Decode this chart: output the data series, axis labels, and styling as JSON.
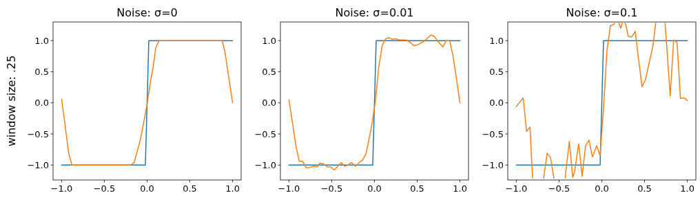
{
  "chart_data": [
    {
      "type": "line",
      "title": "Noise: σ=0",
      "ylabel": "window size: .25",
      "xlim": [
        -1.1,
        1.1
      ],
      "ylim": [
        -1.24,
        1.3
      ],
      "xticks": [
        {
          "value": -1,
          "label": "−1.0"
        },
        {
          "value": -0.5,
          "label": "−0.5"
        },
        {
          "value": 0,
          "label": "0.0"
        },
        {
          "value": 0.5,
          "label": "0.5"
        },
        {
          "value": 1,
          "label": "1.0"
        }
      ],
      "yticks": [
        {
          "value": -1,
          "label": "−1.0"
        },
        {
          "value": -0.5,
          "label": "−0.5"
        },
        {
          "value": 0,
          "label": "0.0"
        },
        {
          "value": 0.5,
          "label": "0.5"
        },
        {
          "value": 1,
          "label": "1.0"
        }
      ],
      "series": [
        {
          "color": "#1f77b4",
          "x": [
            -1,
            -0.02,
            0.02,
            1
          ],
          "values": [
            -1,
            -1,
            1,
            1
          ]
        },
        {
          "color": "#ff7f0e",
          "x": [
            -1,
            -0.96,
            -0.92,
            -0.88,
            -0.19,
            -0.15,
            -0.12,
            -0.08,
            -0.04,
            0,
            0.04,
            0.07,
            0.1,
            0.14,
            0.88,
            0.91,
            0.95,
            1
          ],
          "values": [
            0.06,
            -0.35,
            -0.79,
            -1,
            -1,
            -0.96,
            -0.8,
            -0.6,
            -0.32,
            -0.02,
            0.35,
            0.57,
            0.88,
            1,
            1,
            0.82,
            0.46,
            0
          ]
        }
      ]
    },
    {
      "type": "line",
      "title": "Noise: σ=0.01",
      "xlim": [
        -1.1,
        1.1
      ],
      "ylim": [
        -1.24,
        1.3
      ],
      "xticks": [
        {
          "value": -1,
          "label": "−1.0"
        },
        {
          "value": -0.5,
          "label": "−0.5"
        },
        {
          "value": 0,
          "label": "0.0"
        },
        {
          "value": 0.5,
          "label": "0.5"
        },
        {
          "value": 1,
          "label": "1.0"
        }
      ],
      "yticks": [
        {
          "value": -1,
          "label": "−1.0"
        },
        {
          "value": -0.5,
          "label": "−0.5"
        },
        {
          "value": 0,
          "label": "0.0"
        },
        {
          "value": 0.5,
          "label": "0.5"
        },
        {
          "value": 1,
          "label": "1.0"
        }
      ],
      "series": [
        {
          "color": "#1f77b4",
          "x": [
            -1,
            -0.02,
            0.02,
            1
          ],
          "values": [
            -1,
            -1,
            1,
            1
          ]
        },
        {
          "color": "#ff7f0e",
          "x": [
            -1,
            -0.92,
            -0.88,
            -0.84,
            -0.8,
            -0.76,
            -0.71,
            -0.67,
            -0.64,
            -0.6,
            -0.55,
            -0.51,
            -0.47,
            -0.43,
            -0.39,
            -0.35,
            -0.31,
            -0.27,
            -0.22,
            -0.18,
            -0.14,
            -0.1,
            -0.07,
            -0.03,
            0.01,
            0.05,
            0.09,
            0.13,
            0.17,
            0.21,
            0.25,
            0.29,
            0.33,
            0.37,
            0.42,
            0.46,
            0.5,
            0.54,
            0.58,
            0.62,
            0.66,
            0.7,
            0.74,
            0.8,
            0.84,
            0.88,
            0.92,
            0.96,
            1
          ],
          "values": [
            0.05,
            -0.68,
            -0.94,
            -0.94,
            -1.04,
            -1.04,
            -1.02,
            -1.03,
            -0.97,
            -0.98,
            -1.03,
            -1.03,
            -1.08,
            -1.02,
            -0.96,
            -1.02,
            -1,
            -0.96,
            -1.02,
            -0.96,
            -0.92,
            -0.82,
            -0.63,
            -0.35,
            0.02,
            0.57,
            0.92,
            1.03,
            1.05,
            1.02,
            1.03,
            1.01,
            1.01,
            1.01,
            0.97,
            0.92,
            0.93,
            0.96,
            0.99,
            1.04,
            1.09,
            1.07,
            0.99,
            0.9,
            1,
            1,
            0.75,
            0.38,
            0
          ]
        }
      ]
    },
    {
      "type": "line",
      "title": "Noise: σ=0.1",
      "xlim": [
        -1.1,
        1.1
      ],
      "ylim": [
        -1.24,
        1.3
      ],
      "xticks": [
        {
          "value": -1,
          "label": "−1.0"
        },
        {
          "value": -0.5,
          "label": "−0.5"
        },
        {
          "value": 0,
          "label": "0.0"
        },
        {
          "value": 0.5,
          "label": "0.5"
        },
        {
          "value": 1,
          "label": "1.0"
        }
      ],
      "yticks": [
        {
          "value": -1,
          "label": "−1.0"
        },
        {
          "value": -0.5,
          "label": "−0.5"
        },
        {
          "value": 0,
          "label": "0.0"
        },
        {
          "value": 0.5,
          "label": "0.5"
        },
        {
          "value": 1,
          "label": "1.0"
        }
      ],
      "series": [
        {
          "color": "#1f77b4",
          "x": [
            -1,
            -0.02,
            0.02,
            1
          ],
          "values": [
            -1,
            -1,
            1,
            1
          ]
        },
        {
          "color": "#ff7f0e",
          "x": [
            -1,
            -0.92,
            -0.88,
            -0.84,
            -0.81,
            -0.75,
            -0.68,
            -0.64,
            -0.6,
            -0.56,
            -0.5,
            -0.43,
            -0.38,
            -0.34,
            -0.32,
            -0.27,
            -0.23,
            -0.19,
            -0.15,
            -0.11,
            -0.06,
            -0.02,
            0.02,
            0.06,
            0.1,
            0.14,
            0.15,
            0.18,
            0.2,
            0.22,
            0.24,
            0.26,
            0.27,
            0.28,
            0.31,
            0.35,
            0.39,
            0.47,
            0.51,
            0.6,
            0.63,
            0.7,
            0.74,
            0.8,
            0.84,
            0.88,
            0.92,
            0.96,
            1
          ],
          "values": [
            -0.06,
            0.08,
            -0.46,
            -0.39,
            -1.21,
            null,
            -1.21,
            -0.81,
            -0.88,
            -1.21,
            null,
            -1.21,
            -0.62,
            -1.2,
            -1.12,
            -0.66,
            -1.18,
            -0.69,
            -0.6,
            -0.87,
            -0.69,
            -0.85,
            -0.09,
            0.84,
            1.24,
            1.26,
            1.28,
            null,
            1.28,
            1.2,
            1.28,
            null,
            1.28,
            1.26,
            1.07,
            1.06,
            1.15,
            0.26,
            0.37,
            0.93,
            1.28,
            null,
            1.28,
            0.11,
            1.01,
            0.97,
            0.07,
            0.08,
            0.04
          ]
        }
      ]
    }
  ]
}
